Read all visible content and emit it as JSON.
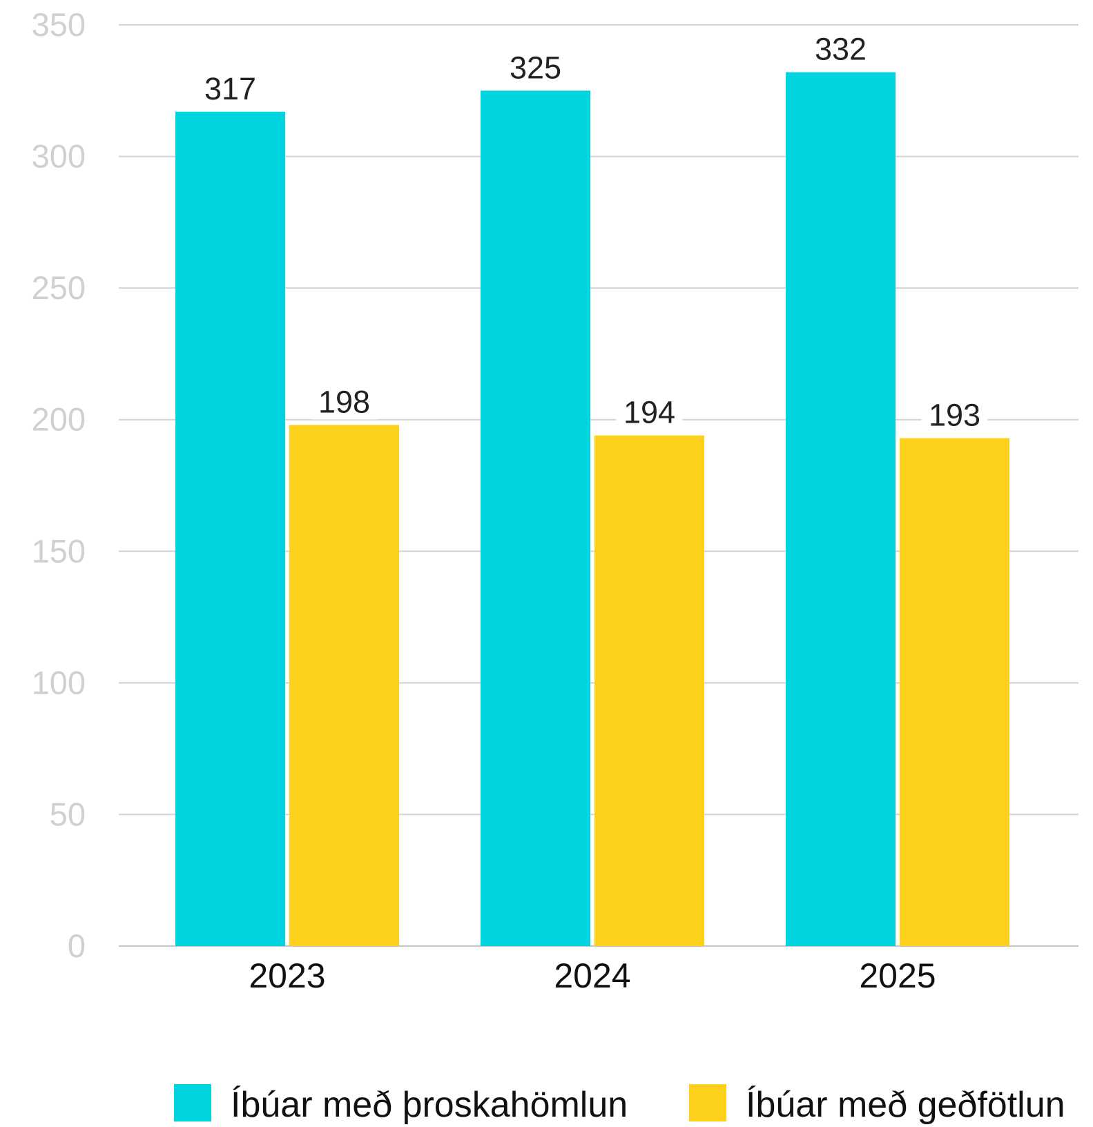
{
  "chart_data": {
    "type": "bar",
    "title": "",
    "xlabel": "",
    "ylabel": "",
    "categories": [
      "2023",
      "2024",
      "2025"
    ],
    "series": [
      {
        "name": "Íbúar með þroskahömlun",
        "values": [
          317,
          325,
          332
        ],
        "color": "#00d4de"
      },
      {
        "name": "Íbúar með geðfötlun",
        "values": [
          198,
          194,
          193
        ],
        "color": "#fdd01c"
      }
    ],
    "ylim": [
      0,
      350
    ],
    "yticks": [
      0,
      50,
      100,
      150,
      200,
      250,
      300,
      350
    ],
    "grid": true,
    "data_labels": true,
    "legend_position": "bottom"
  }
}
